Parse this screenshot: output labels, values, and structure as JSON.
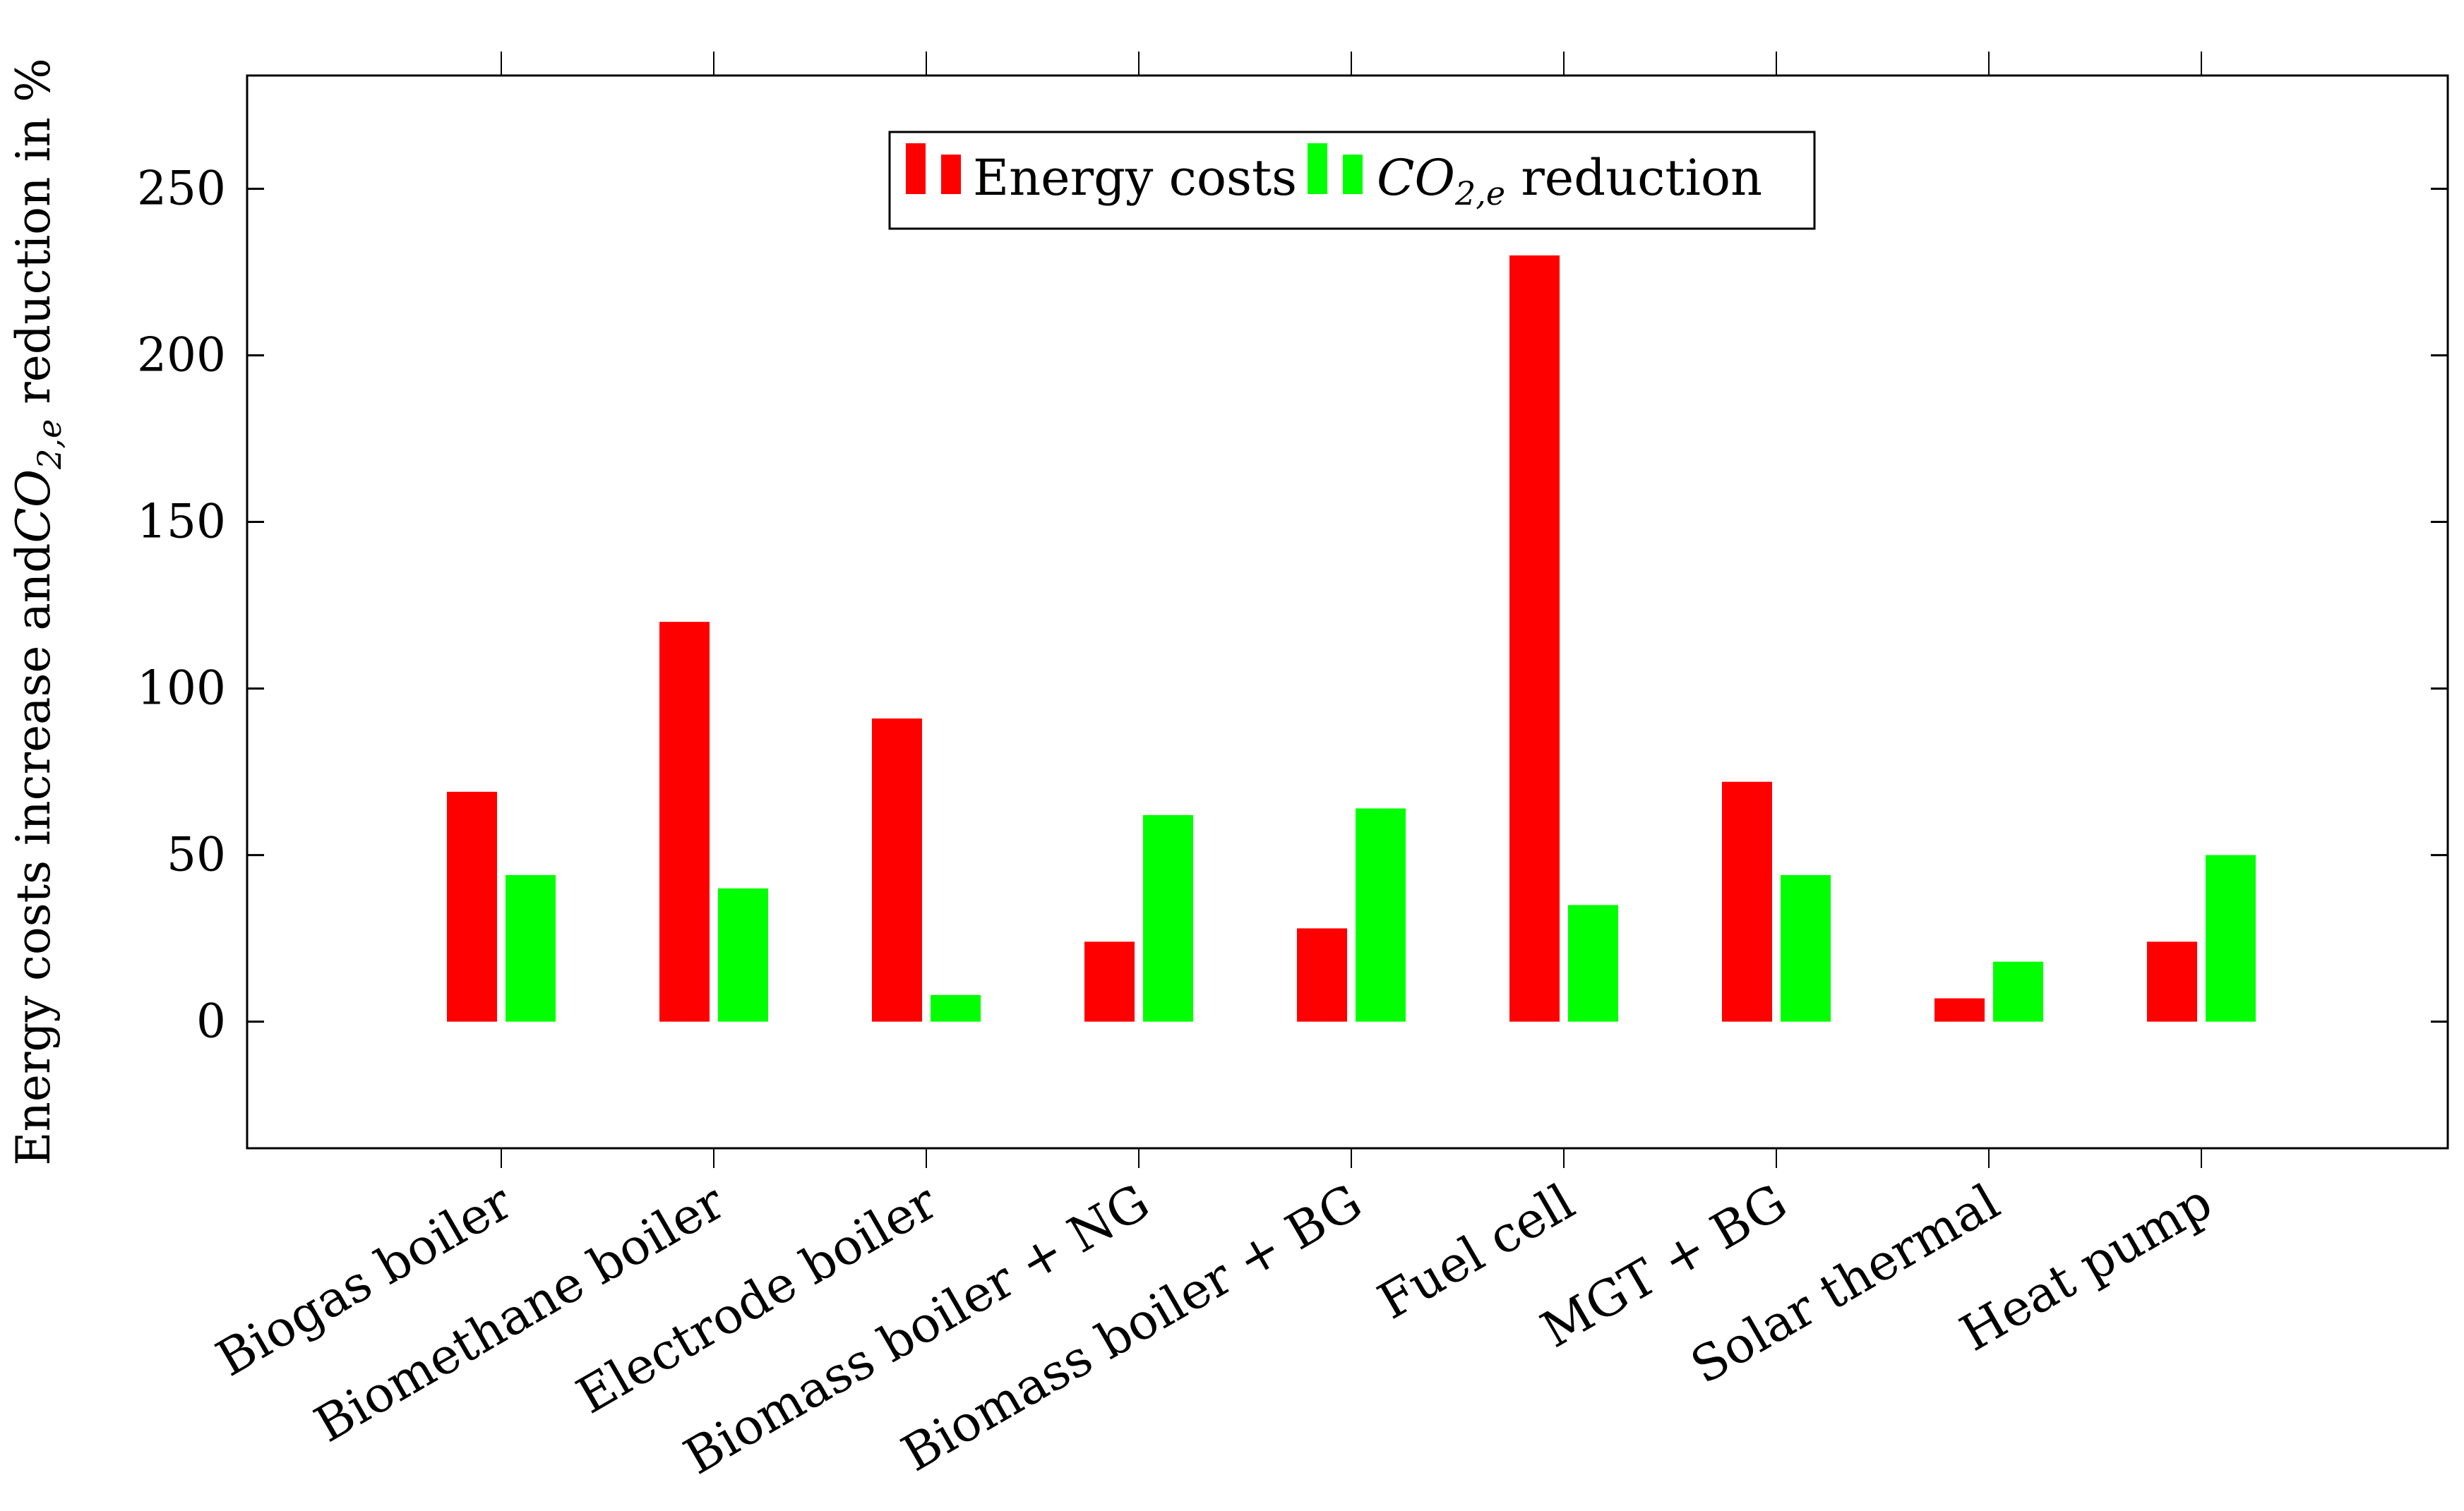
{
  "chart_data": {
    "type": "bar",
    "title": "",
    "xlabel": "",
    "ylabel": {
      "prefix": "Energy costs increase and",
      "co2": "CO",
      "co2_sub": "2,e",
      "suffix": " reduction in  %"
    },
    "ylim": [
      -38,
      284
    ],
    "yticks": [
      0,
      50,
      100,
      150,
      200,
      250
    ],
    "grid": false,
    "legend_position": "top-center",
    "categories": [
      "Biogas boiler",
      "Biomethane boiler",
      "Electrode boiler",
      "Biomass boiler + NG",
      "Biomass boiler + BG",
      "Fuel cell",
      "MGT + BG",
      "Solar thermal",
      "Heat pump"
    ],
    "series": [
      {
        "name": "Energy costs",
        "color": "#ff0000",
        "values": [
          69,
          120,
          91,
          24,
          28,
          230,
          72,
          7,
          24
        ]
      },
      {
        "name": "CO2,e reduction",
        "name_main": "CO",
        "name_sub": "2,e",
        "name_suffix": " reduction",
        "color": "#00ff00",
        "values": [
          44,
          40,
          8,
          62,
          64,
          35,
          44,
          18,
          50
        ]
      }
    ]
  }
}
